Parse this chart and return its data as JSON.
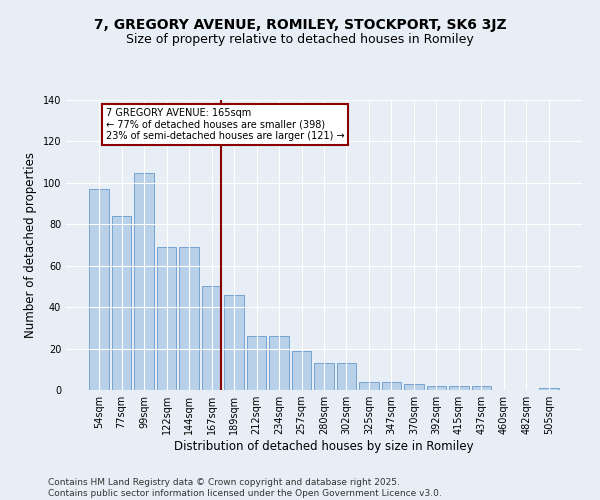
{
  "title": "7, GREGORY AVENUE, ROMILEY, STOCKPORT, SK6 3JZ",
  "subtitle": "Size of property relative to detached houses in Romiley",
  "xlabel": "Distribution of detached houses by size in Romiley",
  "ylabel": "Number of detached properties",
  "bar_labels": [
    "54sqm",
    "77sqm",
    "99sqm",
    "122sqm",
    "144sqm",
    "167sqm",
    "189sqm",
    "212sqm",
    "234sqm",
    "257sqm",
    "280sqm",
    "302sqm",
    "325sqm",
    "347sqm",
    "370sqm",
    "392sqm",
    "415sqm",
    "437sqm",
    "460sqm",
    "482sqm",
    "505sqm"
  ],
  "bar_values": [
    97,
    84,
    105,
    69,
    69,
    50,
    46,
    26,
    26,
    19,
    13,
    13,
    4,
    4,
    3,
    2,
    2,
    2,
    0,
    0,
    1
  ],
  "bar_color": "#b8d0e8",
  "bar_edgecolor": "#6699cc",
  "vline_index": 5,
  "vline_color": "#8b0000",
  "annotation_text": "7 GREGORY AVENUE: 165sqm\n← 77% of detached houses are smaller (398)\n23% of semi-detached houses are larger (121) →",
  "annotation_box_color": "#8b0000",
  "annotation_bg": "#ffffff",
  "ylim": [
    0,
    140
  ],
  "yticks": [
    0,
    20,
    40,
    60,
    80,
    100,
    120,
    140
  ],
  "footer": "Contains HM Land Registry data © Crown copyright and database right 2025.\nContains public sector information licensed under the Open Government Licence v3.0.",
  "bg_color": "#e8eef5",
  "plot_bg": "#e8eef5",
  "grid_color": "#ffffff",
  "title_fontsize": 10,
  "subtitle_fontsize": 9,
  "axis_label_fontsize": 8.5,
  "tick_fontsize": 7,
  "footer_fontsize": 6.5
}
